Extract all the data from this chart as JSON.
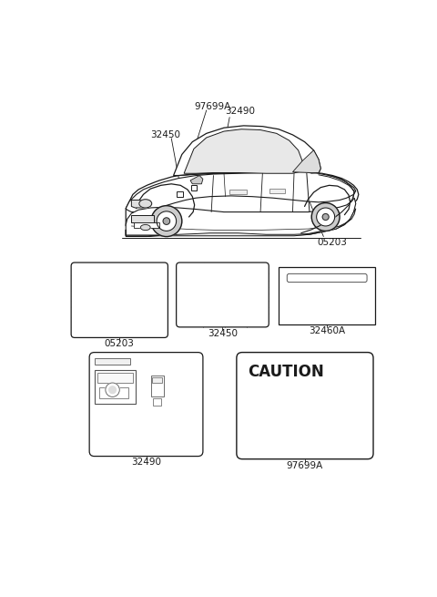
{
  "bg_color": "#ffffff",
  "line_color": "#1a1a1a",
  "grid_color": "#555555",
  "car_label_97699A": "97699A",
  "car_label_32490": "32490",
  "car_label_32450": "32450",
  "car_label_05203": "05203",
  "label_05203": "05203",
  "label_32450": "32450",
  "label_32460A": "32460A",
  "label_32490": "32490",
  "label_97699A": "97699A",
  "caution_text": "CAUTION",
  "car_region": [
    20,
    10,
    460,
    250
  ],
  "label1_region": [
    22,
    270,
    140,
    380
  ],
  "label2_region": [
    170,
    275,
    305,
    370
  ],
  "label3_region": [
    318,
    278,
    458,
    365
  ],
  "label4_region": [
    48,
    400,
    210,
    555
  ],
  "label5_region": [
    258,
    400,
    455,
    560
  ]
}
